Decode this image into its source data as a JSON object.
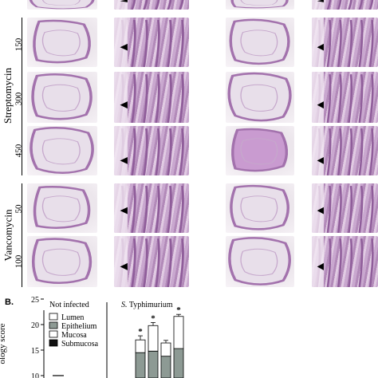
{
  "panel_a": {
    "groups": [
      {
        "label": "Streptomycin",
        "doses": [
          "150",
          "300",
          "450"
        ]
      },
      {
        "label": "Vancomycin",
        "doses": [
          "50",
          "100"
        ]
      }
    ]
  },
  "panel_b": {
    "label": "B.",
    "header_not_infected": "Not infected",
    "header_infected_prefix": "S.",
    "header_infected_suffix": " Typhimurium",
    "ylabel": "ology score",
    "significance_marker": "*"
  },
  "chart_data": {
    "type": "bar",
    "ylabel": "ology score",
    "yticks": [
      "10",
      "15",
      "20",
      "25"
    ],
    "ylim": [
      10,
      25
    ],
    "legend": [
      "Lumen",
      "Epithelium",
      "Mucosa",
      "Submucosa"
    ],
    "legend_colors": [
      "#ffffff",
      "#8d9a94",
      "#ffffff",
      "#111111"
    ],
    "series": [
      {
        "name": "Not infected",
        "values": [
          10
        ]
      },
      {
        "name": "S. Typhimurium",
        "values": [
          17.0,
          19.8,
          16.4,
          21.6
        ],
        "errors": [
          0.8,
          0.6,
          0.5,
          0.4
        ],
        "significant": [
          true,
          true,
          false,
          true
        ],
        "epithelium_top": [
          14.5,
          14.8,
          13.8,
          15.3
        ]
      }
    ]
  },
  "colors": {
    "tissue_dark": "#b28ab9",
    "tissue_light": "#ece6ec",
    "axis": "#000000"
  }
}
